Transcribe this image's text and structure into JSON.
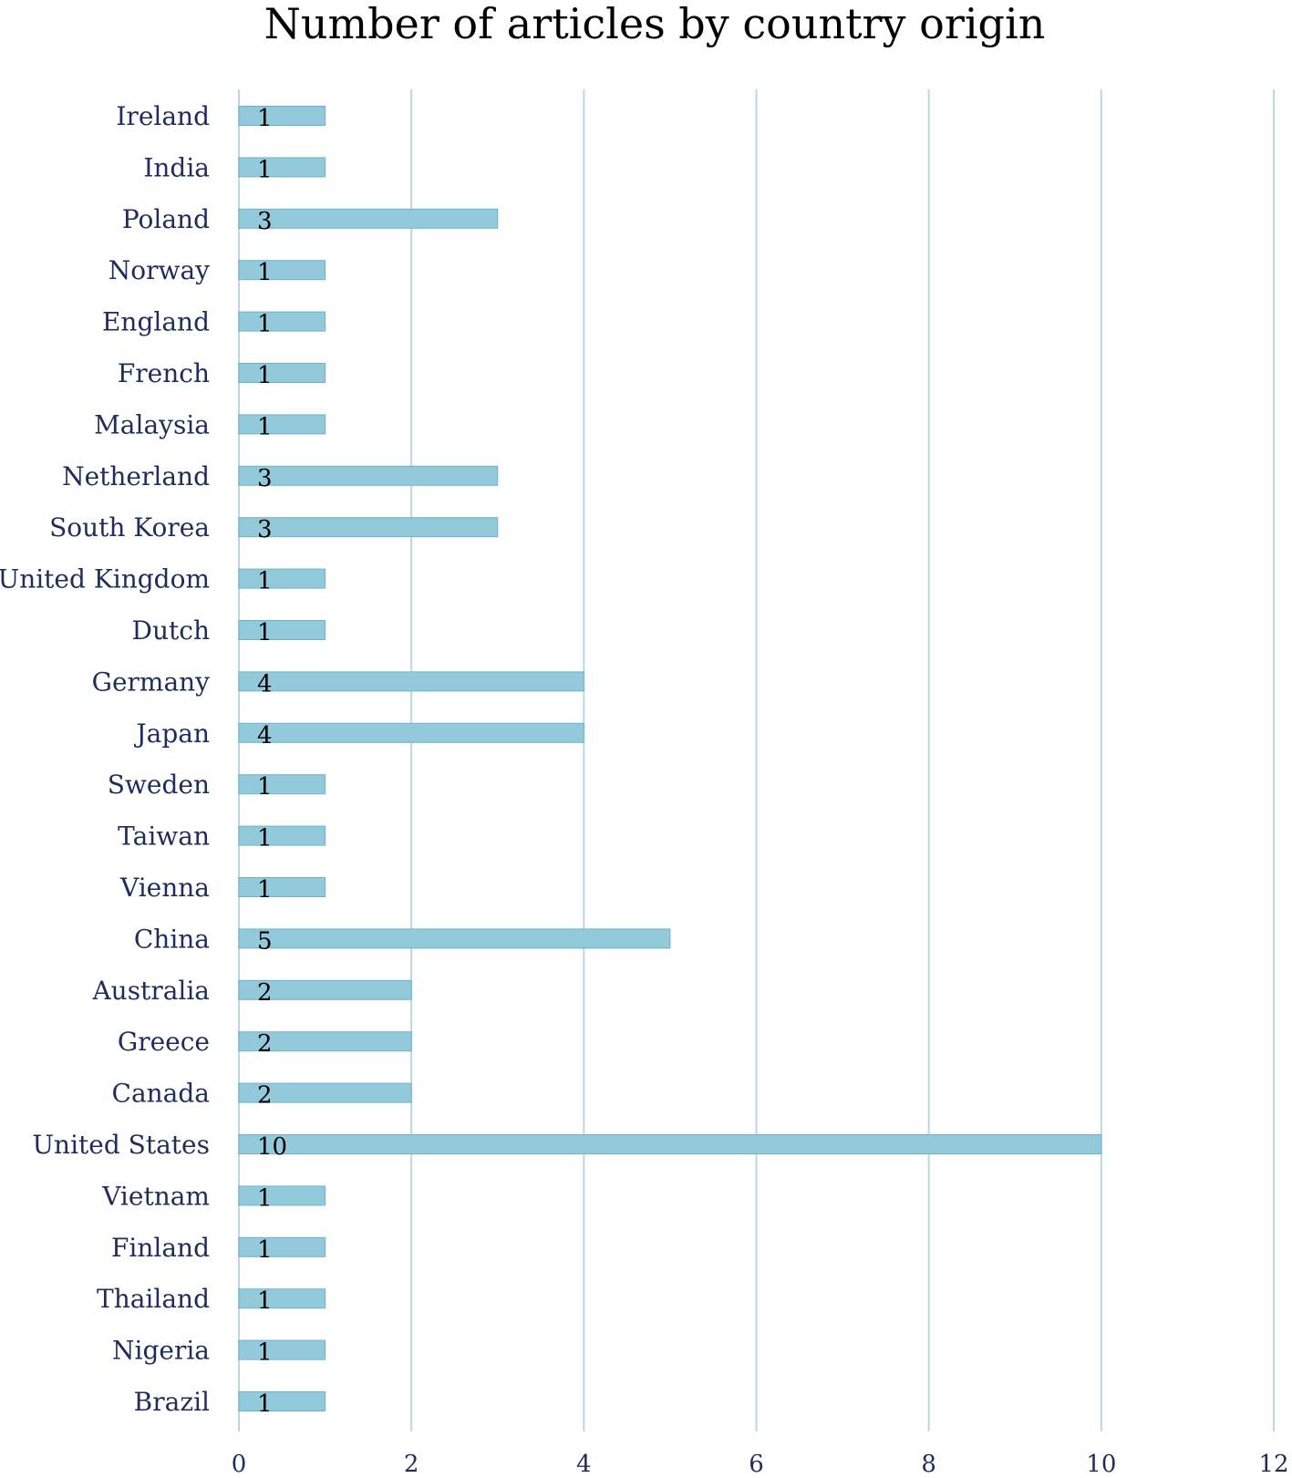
{
  "chart_data": {
    "type": "bar",
    "orientation": "horizontal",
    "title": "Number of articles by country origin",
    "xlabel": "",
    "ylabel": "",
    "categories": [
      "Ireland",
      "India",
      "Poland",
      "Norway",
      "England",
      "French",
      "Malaysia",
      "Netherland",
      "South Korea",
      "United Kingdom",
      "Dutch",
      "Germany",
      "Japan",
      "Sweden",
      "Taiwan",
      "Vienna",
      "China",
      "Australia",
      "Greece",
      "Canada",
      "United States",
      "Vietnam",
      "Finland",
      "Thailand",
      "Nigeria",
      "Brazil"
    ],
    "values": [
      1,
      1,
      3,
      1,
      1,
      1,
      1,
      3,
      3,
      1,
      1,
      4,
      4,
      1,
      1,
      1,
      5,
      2,
      2,
      2,
      10,
      1,
      1,
      1,
      1,
      1
    ],
    "xlim": [
      0,
      12
    ],
    "xticks": [
      0,
      2,
      4,
      6,
      8,
      10,
      12
    ],
    "grid": "vertical",
    "legend": "none",
    "data_labels": true,
    "colors": {
      "bar_fill": "#92cadb",
      "bar_stroke": "#6fb3c9",
      "grid": "#b8d8e6",
      "label_text": "#1f2d5c",
      "title_text": "#000000"
    }
  }
}
